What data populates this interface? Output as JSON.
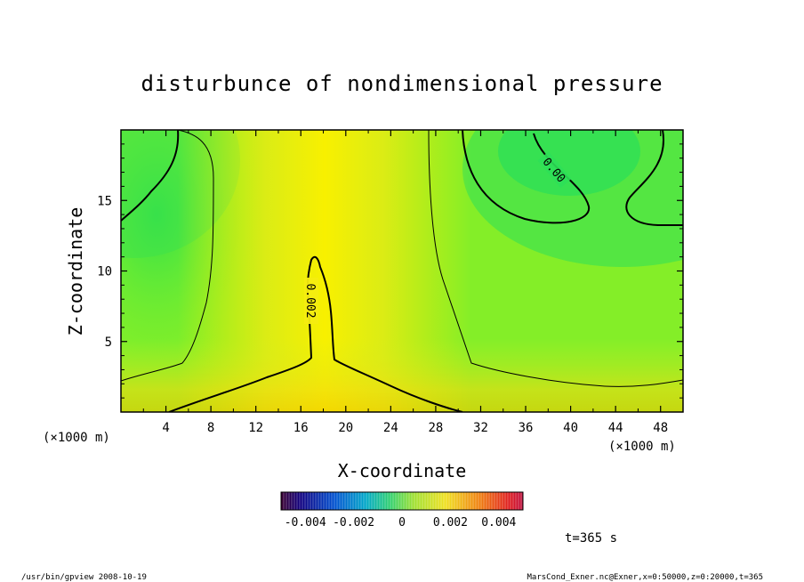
{
  "chart_data": {
    "type": "heatmap",
    "title": "disturbunce of nondimensional pressure",
    "xlabel": "X-coordinate",
    "ylabel": "Z-coordinate",
    "x_unit_left": "(×1000 m)",
    "x_unit_right": "(×1000 m)",
    "xlim": [
      0,
      50
    ],
    "ylim": [
      0,
      20
    ],
    "x_ticks": [
      4,
      8,
      12,
      16,
      20,
      24,
      28,
      32,
      36,
      40,
      44,
      48
    ],
    "x_tick_labels": [
      "4",
      "8",
      "12",
      "16",
      "20",
      "24",
      "28",
      "32",
      "36",
      "40",
      "44",
      "48"
    ],
    "y_ticks": [
      5,
      10,
      15
    ],
    "y_tick_labels": [
      "5",
      "10",
      "15"
    ],
    "contour_labels": [
      {
        "text": "0.00",
        "x": 41,
        "z": 17
      },
      {
        "text": "0.002",
        "x": 16.7,
        "z": 7.5
      }
    ],
    "colorbar": {
      "min": -0.005,
      "max": 0.005,
      "tick_labels": [
        "-0.004",
        "-0.002",
        "0",
        "0.002",
        "0.004"
      ],
      "tick_values": [
        -0.004,
        -0.002,
        0,
        0.002,
        0.004
      ]
    },
    "time_label": "t=365 s"
  },
  "footer": {
    "left": "/usr/bin/gpview  2008-10-19",
    "right": "MarsCond_Exner.nc@Exner,x=0:50000,z=0:20000,t=365"
  }
}
